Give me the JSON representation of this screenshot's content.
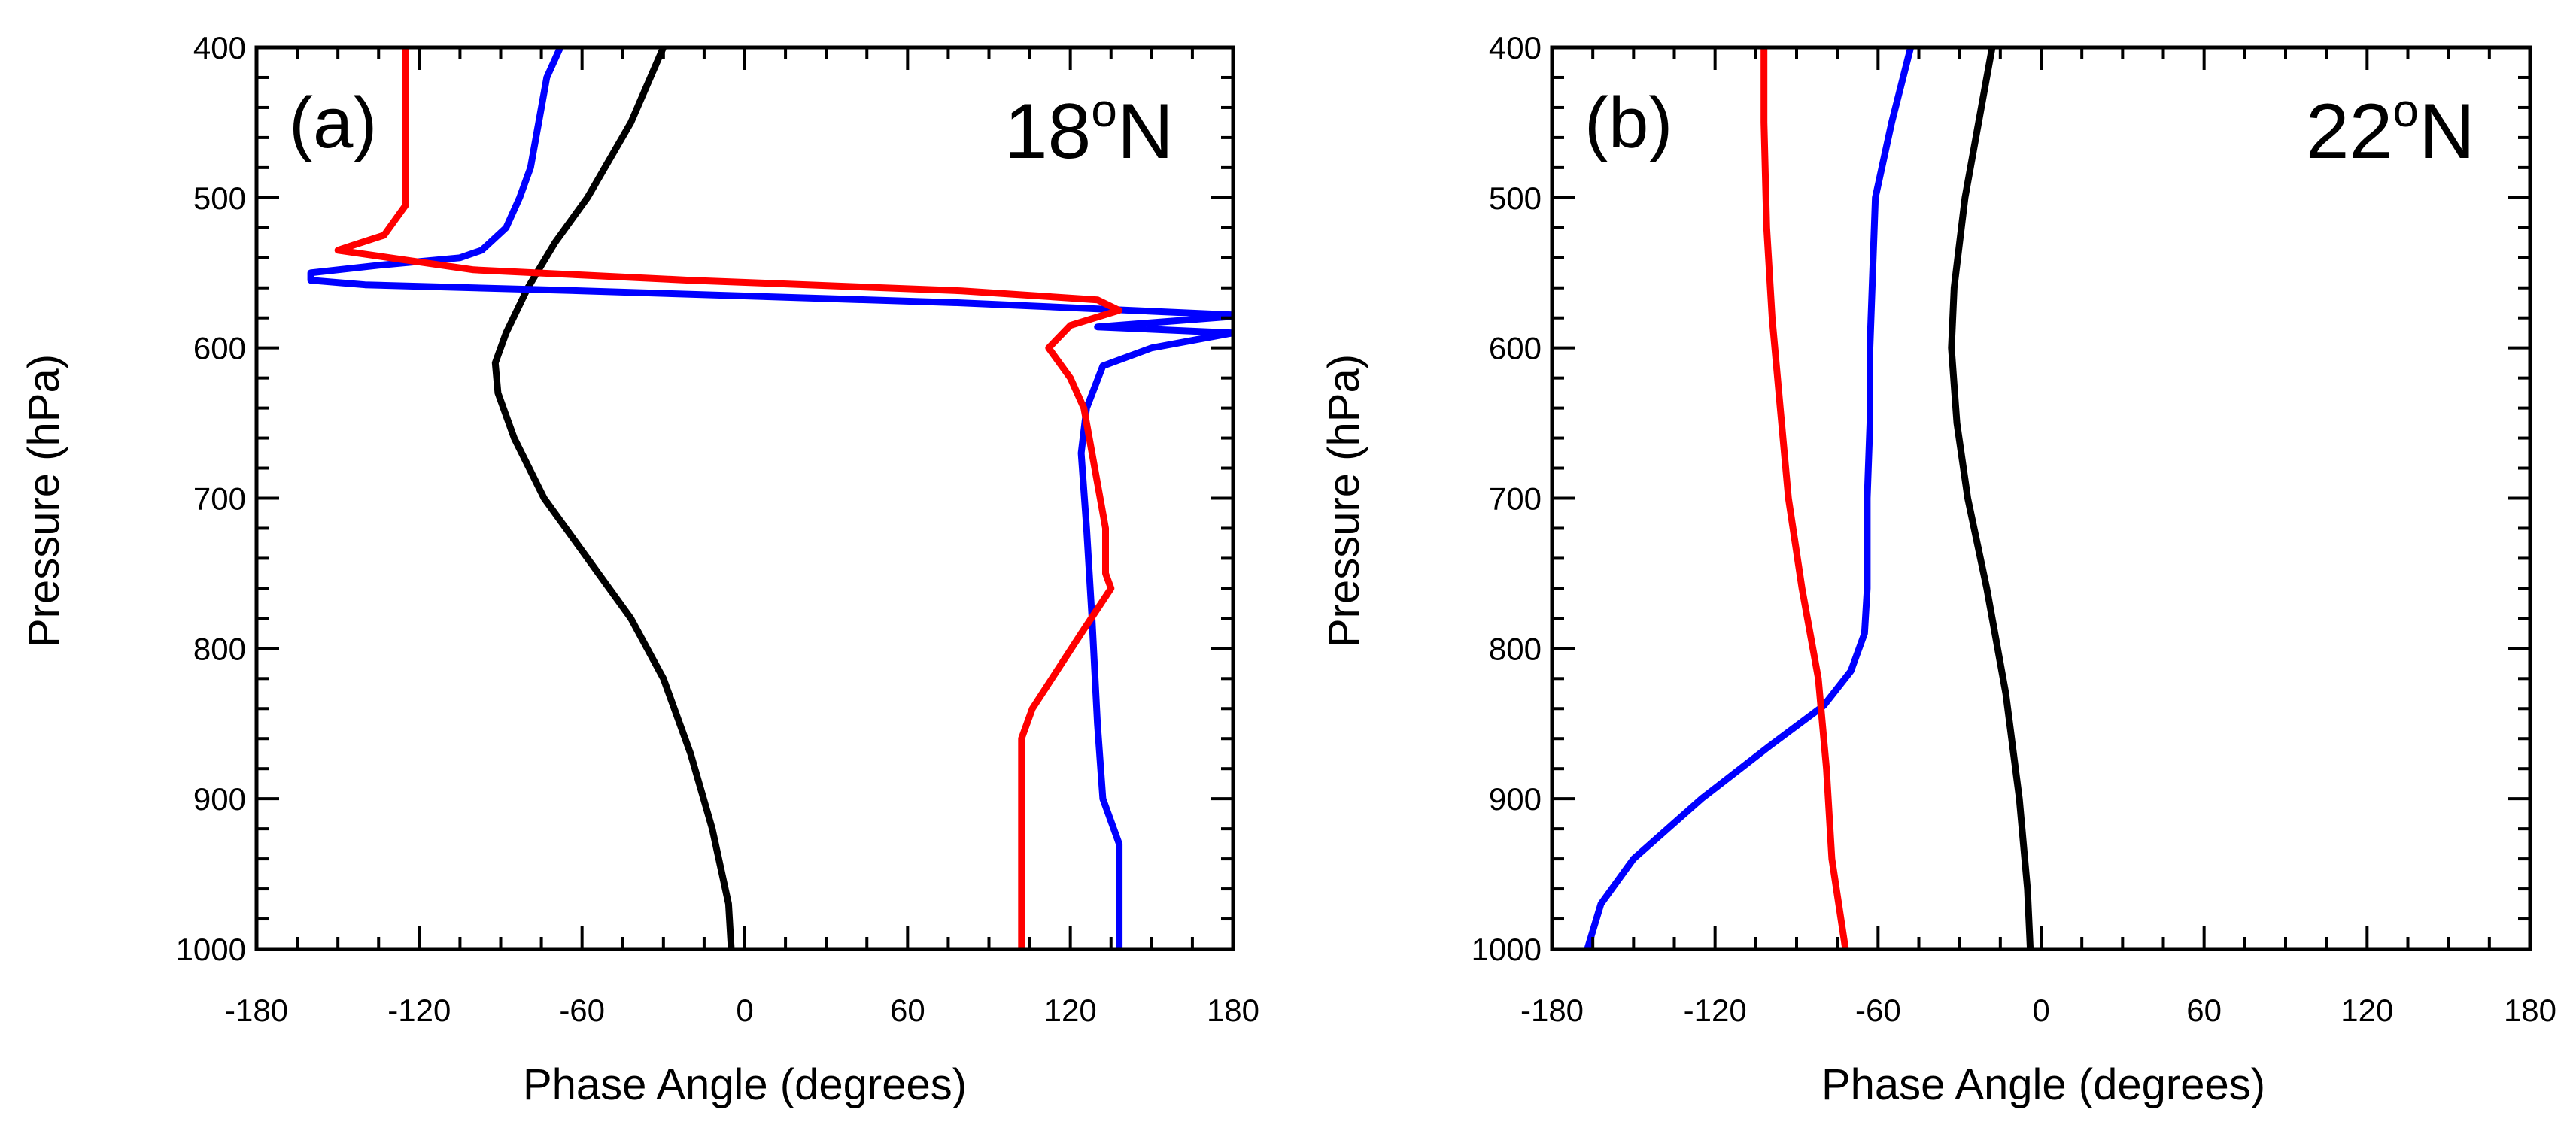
{
  "chart_data": [
    {
      "type": "line",
      "panel_label": "(a)",
      "latitude_label": "18",
      "latitude_unit": "o",
      "latitude_hemisphere": "N",
      "xlabel": "Phase Angle (degrees)",
      "ylabel": "Pressure (hPa)",
      "xlim": [
        -180,
        180
      ],
      "ylim": [
        1000,
        400
      ],
      "xticks": [
        -180,
        -120,
        -60,
        0,
        60,
        120,
        180
      ],
      "yticks": [
        400,
        500,
        600,
        700,
        800,
        900,
        1000
      ],
      "series": [
        {
          "name": "black",
          "color": "#000000",
          "points": [
            [
              -30,
              400
            ],
            [
              -42,
              450
            ],
            [
              -58,
              500
            ],
            [
              -70,
              530
            ],
            [
              -80,
              560
            ],
            [
              -88,
              590
            ],
            [
              -92,
              610
            ],
            [
              -91,
              630
            ],
            [
              -85,
              660
            ],
            [
              -74,
              700
            ],
            [
              -58,
              740
            ],
            [
              -42,
              780
            ],
            [
              -30,
              820
            ],
            [
              -20,
              870
            ],
            [
              -12,
              920
            ],
            [
              -6,
              970
            ],
            [
              -5,
              1000
            ]
          ]
        },
        {
          "name": "blue",
          "color": "#0000ff",
          "points": [
            [
              -68,
              400
            ],
            [
              -73,
              420
            ],
            [
              -75,
              440
            ],
            [
              -77,
              460
            ],
            [
              -79,
              480
            ],
            [
              -83,
              500
            ],
            [
              -88,
              520
            ],
            [
              -97,
              535
            ],
            [
              -105,
              540
            ],
            [
              -135,
              545
            ],
            [
              -160,
              550
            ],
            [
              -160,
              555
            ],
            [
              -140,
              558
            ],
            [
              -60,
              562
            ],
            [
              80,
              570
            ],
            [
              180,
              578
            ],
            [
              180,
              579
            ],
            [
              130,
              586
            ],
            [
              180,
              590
            ],
            [
              150,
              600
            ],
            [
              132,
              612
            ],
            [
              126,
              640
            ],
            [
              124,
              670
            ],
            [
              126,
              720
            ],
            [
              128,
              780
            ],
            [
              130,
              850
            ],
            [
              132,
              900
            ],
            [
              138,
              930
            ],
            [
              138,
              1000
            ]
          ]
        },
        {
          "name": "red",
          "color": "#ff0000",
          "points": [
            [
              -125,
              400
            ],
            [
              -125,
              460
            ],
            [
              -125,
              505
            ],
            [
              -133,
              525
            ],
            [
              -145,
              532
            ],
            [
              -150,
              535
            ],
            [
              -100,
              548
            ],
            [
              -20,
              555
            ],
            [
              80,
              562
            ],
            [
              130,
              568
            ],
            [
              138,
              575
            ],
            [
              120,
              585
            ],
            [
              112,
              600
            ],
            [
              120,
              620
            ],
            [
              125,
              640
            ],
            [
              127,
              660
            ],
            [
              130,
              690
            ],
            [
              133,
              720
            ],
            [
              133,
              750
            ],
            [
              135,
              760
            ],
            [
              124,
              790
            ],
            [
              106,
              840
            ],
            [
              102,
              860
            ],
            [
              102,
              1000
            ]
          ]
        }
      ]
    },
    {
      "type": "line",
      "panel_label": "(b)",
      "latitude_label": "22",
      "latitude_unit": "o",
      "latitude_hemisphere": "N",
      "xlabel": "Phase Angle (degrees)",
      "ylabel": "Pressure (hPa)",
      "xlim": [
        -180,
        180
      ],
      "ylim": [
        1000,
        400
      ],
      "xticks": [
        -180,
        -120,
        -60,
        0,
        60,
        120,
        180
      ],
      "yticks": [
        400,
        500,
        600,
        700,
        800,
        900,
        1000
      ],
      "series": [
        {
          "name": "black",
          "color": "#000000",
          "points": [
            [
              -18,
              400
            ],
            [
              -23,
              450
            ],
            [
              -28,
              500
            ],
            [
              -32,
              560
            ],
            [
              -33,
              600
            ],
            [
              -31,
              650
            ],
            [
              -27,
              700
            ],
            [
              -20,
              760
            ],
            [
              -13,
              830
            ],
            [
              -8,
              900
            ],
            [
              -5,
              960
            ],
            [
              -4,
              1000
            ]
          ]
        },
        {
          "name": "blue",
          "color": "#0000ff",
          "points": [
            [
              -48,
              400
            ],
            [
              -55,
              450
            ],
            [
              -61,
              500
            ],
            [
              -62,
              550
            ],
            [
              -63,
              600
            ],
            [
              -63,
              650
            ],
            [
              -64,
              700
            ],
            [
              -64,
              760
            ],
            [
              -65,
              790
            ],
            [
              -70,
              815
            ],
            [
              -80,
              838
            ],
            [
              -100,
              865
            ],
            [
              -125,
              900
            ],
            [
              -150,
              940
            ],
            [
              -162,
              970
            ],
            [
              -167,
              1000
            ]
          ]
        },
        {
          "name": "red",
          "color": "#ff0000",
          "points": [
            [
              -102,
              400
            ],
            [
              -102,
              450
            ],
            [
              -101,
              520
            ],
            [
              -99,
              580
            ],
            [
              -96,
              640
            ],
            [
              -93,
              700
            ],
            [
              -88,
              760
            ],
            [
              -82,
              820
            ],
            [
              -79,
              880
            ],
            [
              -77,
              940
            ],
            [
              -72,
              1000
            ]
          ]
        }
      ]
    }
  ]
}
